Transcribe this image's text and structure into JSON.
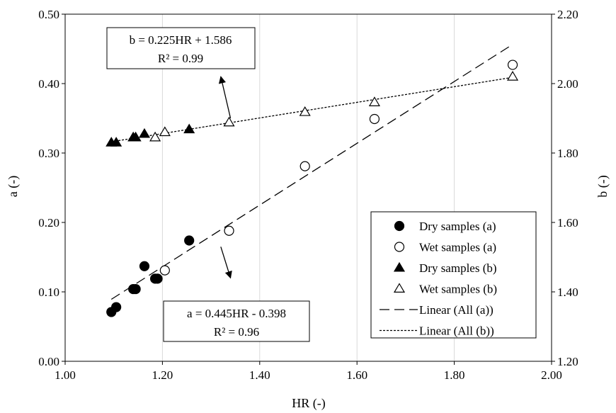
{
  "chart_data": {
    "type": "scatter",
    "xlabel": "HR (-)",
    "ylabel_left": "a (-)",
    "ylabel_right": "b (-)",
    "xlim": [
      1.0,
      2.0
    ],
    "ylim_left": [
      0.0,
      0.5
    ],
    "ylim_right": [
      1.2,
      2.2
    ],
    "x_ticks": [
      "1.00",
      "1.20",
      "1.40",
      "1.60",
      "1.80",
      "2.00"
    ],
    "y_ticks_left": [
      "0.00",
      "0.10",
      "0.20",
      "0.30",
      "0.40",
      "0.50"
    ],
    "y_ticks_right": [
      "1.20",
      "1.40",
      "1.60",
      "1.80",
      "2.00",
      "2.20"
    ],
    "grid": "vertical",
    "legend_position": "bottom-right",
    "series": [
      {
        "name": "Dry samples (a)",
        "axis": "left",
        "marker": "filled-circle",
        "points": [
          [
            1.095,
            0.071
          ],
          [
            1.105,
            0.078
          ],
          [
            1.14,
            0.104
          ],
          [
            1.145,
            0.104
          ],
          [
            1.163,
            0.137
          ],
          [
            1.185,
            0.119
          ],
          [
            1.19,
            0.119
          ],
          [
            1.255,
            0.174
          ]
        ]
      },
      {
        "name": "Wet samples (a)",
        "axis": "left",
        "marker": "open-circle",
        "points": [
          [
            1.205,
            0.131
          ],
          [
            1.337,
            0.188
          ],
          [
            1.493,
            0.281
          ],
          [
            1.636,
            0.349
          ],
          [
            1.92,
            0.427
          ]
        ]
      },
      {
        "name": "Dry samples (b)",
        "axis": "right",
        "marker": "filled-triangle",
        "points": [
          [
            1.095,
            1.83
          ],
          [
            1.105,
            1.83
          ],
          [
            1.14,
            1.845
          ],
          [
            1.145,
            1.845
          ],
          [
            1.163,
            1.855
          ],
          [
            1.255,
            1.868
          ]
        ]
      },
      {
        "name": "Wet samples (b)",
        "axis": "right",
        "marker": "open-triangle",
        "points": [
          [
            1.185,
            1.845
          ],
          [
            1.205,
            1.86
          ],
          [
            1.337,
            1.888
          ],
          [
            1.493,
            1.918
          ],
          [
            1.636,
            1.946
          ],
          [
            1.92,
            2.02
          ]
        ]
      },
      {
        "name": "Linear (All (a))",
        "axis": "left",
        "line": "long-dash",
        "fit": {
          "slope": 0.445,
          "intercept": -0.398
        },
        "x_range": [
          1.095,
          1.92
        ]
      },
      {
        "name": "Linear (All (b))",
        "axis": "right",
        "line": "short-dash",
        "fit": {
          "slope": 0.225,
          "intercept": 1.586
        },
        "x_range": [
          1.095,
          1.92
        ]
      }
    ],
    "annotations": [
      {
        "lines": [
          "b = 0.225HR + 1.586",
          "R² = 0.99"
        ],
        "arrow_from": [
          1.34,
          1.9
        ],
        "arrow_to": [
          1.32,
          2.02
        ],
        "arrow_axis": "right"
      },
      {
        "lines": [
          "a = 0.445HR - 0.398",
          "R² = 0.96"
        ],
        "arrow_from": [
          1.32,
          0.165
        ],
        "arrow_to": [
          1.34,
          0.12
        ],
        "arrow_axis": "left"
      }
    ],
    "colors": {
      "marker": "#000000",
      "grid": "#d9d9d9",
      "axis": "#000000"
    }
  }
}
